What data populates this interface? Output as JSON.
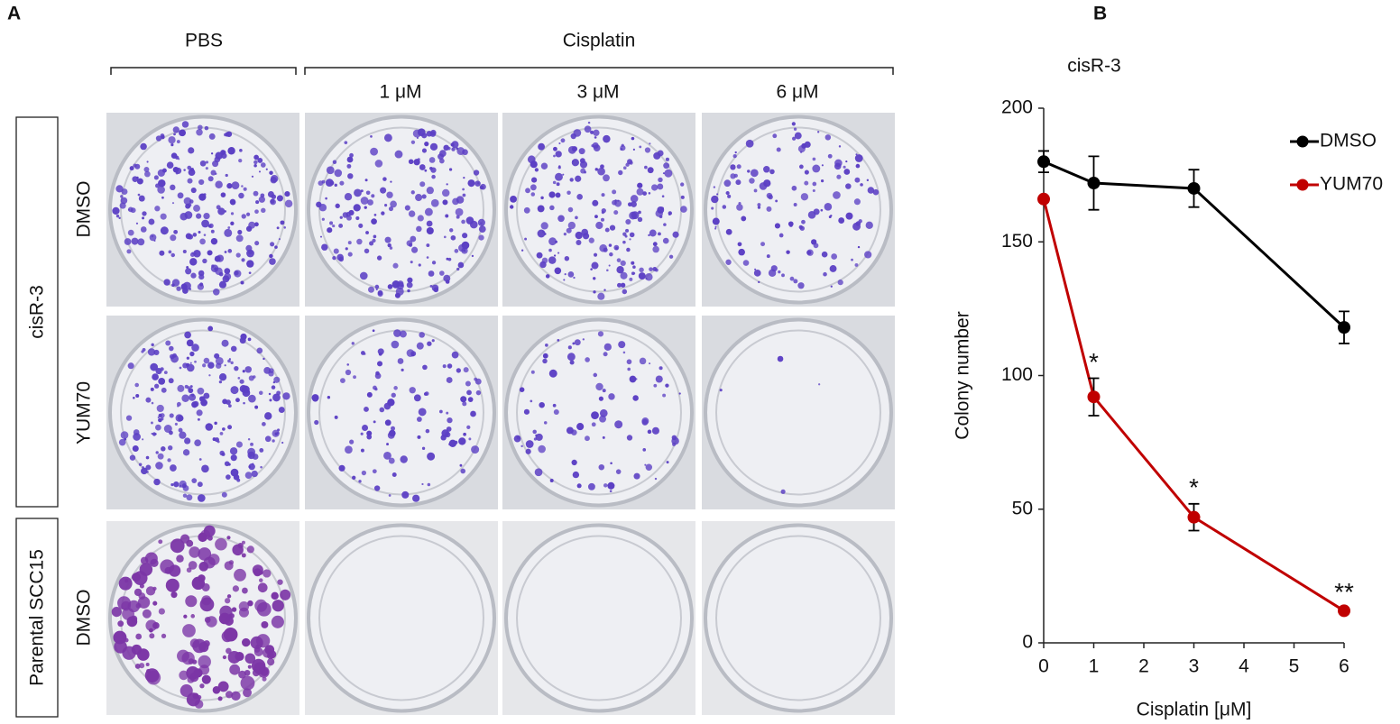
{
  "panel_a": {
    "label": "A",
    "column_groups": [
      "PBS",
      "Cisplatin"
    ],
    "columns": [
      "1 μM",
      "3 μM",
      "6 μM"
    ],
    "row_groups": [
      "cisR-3",
      "Parental SCC15"
    ],
    "rows": [
      "DMSO",
      "YUM70",
      "DMSO"
    ]
  },
  "panel_b_label": "B",
  "chart_data": {
    "type": "line",
    "title": "cisR-3",
    "x_label": "Cisplatin [μM]",
    "y_label": "Colony number",
    "x": [
      0,
      1,
      3,
      6
    ],
    "xlim": [
      0,
      6
    ],
    "xticks": [
      0,
      1,
      2,
      3,
      4,
      5,
      6
    ],
    "ylim": [
      0,
      200
    ],
    "yticks": [
      0,
      50,
      100,
      150,
      200
    ],
    "legend": "upper right",
    "grid": false,
    "series": [
      {
        "name": "DMSO",
        "color": "#000000",
        "values": [
          180,
          172,
          170,
          118
        ],
        "errors": [
          4,
          10,
          7,
          6
        ],
        "significance": [
          null,
          null,
          null,
          null
        ]
      },
      {
        "name": "YUM70",
        "color": "#c00000",
        "values": [
          166,
          92,
          47,
          12
        ],
        "errors": [
          1,
          7,
          5,
          1
        ],
        "significance": [
          null,
          "*",
          "*",
          "**"
        ]
      }
    ]
  }
}
